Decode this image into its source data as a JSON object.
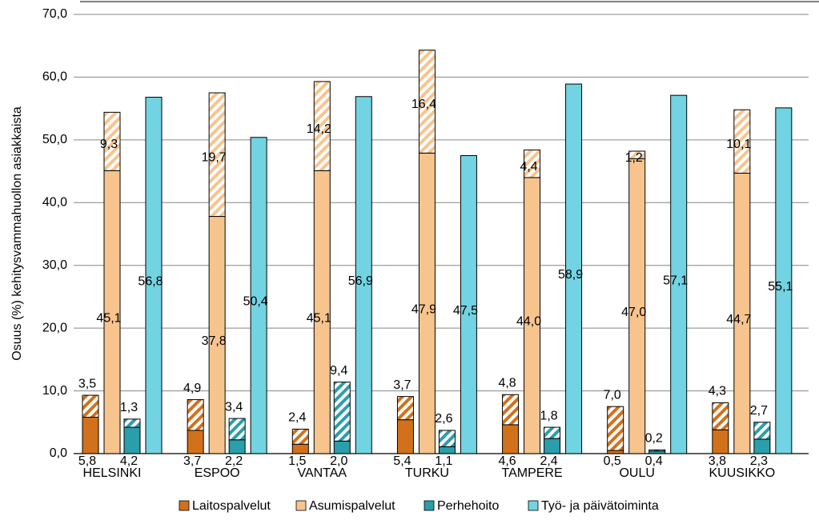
{
  "chart_data": {
    "type": "bar",
    "y_label": "Osuus (%) kehitysvammahuollon asiakkaista",
    "categories": [
      "HELSINKI",
      "ESPOO",
      "VANTAA",
      "TURKU",
      "TAMPERE",
      "OULU",
      "KUUSIKKO"
    ],
    "ylim": [
      0,
      70
    ],
    "yticks": [
      {
        "value": 0,
        "label": "0,0"
      },
      {
        "value": 10,
        "label": "10,0"
      },
      {
        "value": 20,
        "label": "20,0"
      },
      {
        "value": 30,
        "label": "30,0"
      },
      {
        "value": 40,
        "label": "40,0"
      },
      {
        "value": 50,
        "label": "50,0"
      },
      {
        "value": 60,
        "label": "60,0"
      },
      {
        "value": 70,
        "label": "70,0"
      }
    ],
    "grid": true,
    "legend": "bottom",
    "series": [
      {
        "name": "Laitospalvelut",
        "color": "#d2711b",
        "values": [
          5.8,
          3.7,
          1.5,
          5.4,
          4.6,
          0.5,
          3.8
        ],
        "value_labels": [
          "5,8",
          "3,7",
          "1,5",
          "5,4",
          "4,6",
          "0,5",
          "3,8"
        ],
        "hatched_values": [
          3.5,
          4.9,
          2.4,
          3.7,
          4.8,
          7.0,
          4.3
        ],
        "hatched_value_labels": [
          "3,5",
          "4,9",
          "2,4",
          "3,7",
          "4,8",
          "7,0",
          "4,3"
        ]
      },
      {
        "name": "Asumispalvelut",
        "color": "#f8c48e",
        "values": [
          45.1,
          37.8,
          45.1,
          47.9,
          44.0,
          47.0,
          44.7
        ],
        "value_labels": [
          "45,1",
          "37,8",
          "45,1",
          "47,9",
          "44,0",
          "47,0",
          "44,7"
        ],
        "hatched_values": [
          9.3,
          19.7,
          14.2,
          16.4,
          4.4,
          1.2,
          10.1
        ],
        "hatched_value_labels": [
          "9,3",
          "19,7",
          "14,2",
          "16,4",
          "4,4",
          "1,2",
          "10,1"
        ]
      },
      {
        "name": "Perhehoito",
        "color": "#2a9eaa",
        "values": [
          4.2,
          2.2,
          2.0,
          1.1,
          2.4,
          0.4,
          2.3
        ],
        "value_labels": [
          "4,2",
          "2,2",
          "2,0",
          "1,1",
          "2,4",
          "0,4",
          "2,3"
        ],
        "hatched_values": [
          1.3,
          3.4,
          9.4,
          2.6,
          1.8,
          0.2,
          2.7
        ],
        "hatched_value_labels": [
          "1,3",
          "3,4",
          "9,4",
          "2,6",
          "1,8",
          "0,2",
          "2,7"
        ]
      },
      {
        "name": "Työ- ja päivätoiminta",
        "color": "#72d3e2",
        "values": [
          56.8,
          50.4,
          56.9,
          47.5,
          58.9,
          57.1,
          55.1
        ],
        "value_labels": [
          "56,8",
          "50,4",
          "56,9",
          "47,5",
          "58,9",
          "57,1",
          "55,1"
        ]
      }
    ]
  }
}
